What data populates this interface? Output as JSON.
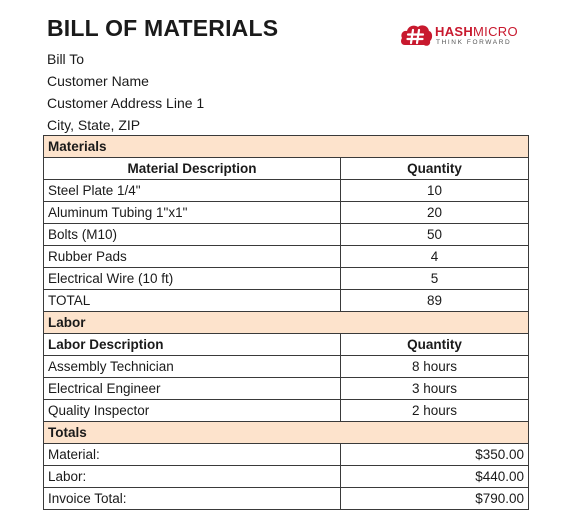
{
  "document": {
    "title": "BILL OF MATERIALS",
    "logo": {
      "name_bold": "HASH",
      "name_regular": "MICRO",
      "tagline": "THINK FORWARD",
      "brand_color": "#c8192e"
    },
    "bill_to": [
      "Bill To",
      "Customer Name",
      "Customer Address Line 1",
      "City, State, ZIP"
    ]
  },
  "materials": {
    "section_label": "Materials",
    "headers": [
      "Material Description",
      "Quantity"
    ],
    "rows": [
      {
        "desc": "Steel Plate 1/4\"",
        "qty": "10"
      },
      {
        "desc": "Aluminum Tubing 1\"x1\"",
        "qty": "20"
      },
      {
        "desc": "Bolts (M10)",
        "qty": "50"
      },
      {
        "desc": "Rubber Pads",
        "qty": "4"
      },
      {
        "desc": "Electrical Wire (10 ft)",
        "qty": "5"
      },
      {
        "desc": "TOTAL",
        "qty": "89"
      }
    ]
  },
  "labor": {
    "section_label": "Labor",
    "headers": [
      "Labor Description",
      "Quantity"
    ],
    "rows": [
      {
        "desc": "Assembly Technician",
        "qty": "8 hours"
      },
      {
        "desc": "Electrical Engineer",
        "qty": "3 hours"
      },
      {
        "desc": "Quality Inspector",
        "qty": "2 hours"
      }
    ]
  },
  "totals": {
    "section_label": "Totals",
    "rows": [
      {
        "label": "Material:",
        "amount": "$350.00"
      },
      {
        "label": "Labor:",
        "amount": "$440.00"
      },
      {
        "label": "Invoice Total:",
        "amount": "$790.00"
      }
    ]
  },
  "colors": {
    "section_fill": "#fde3cc",
    "border": "#3a3a3a"
  }
}
